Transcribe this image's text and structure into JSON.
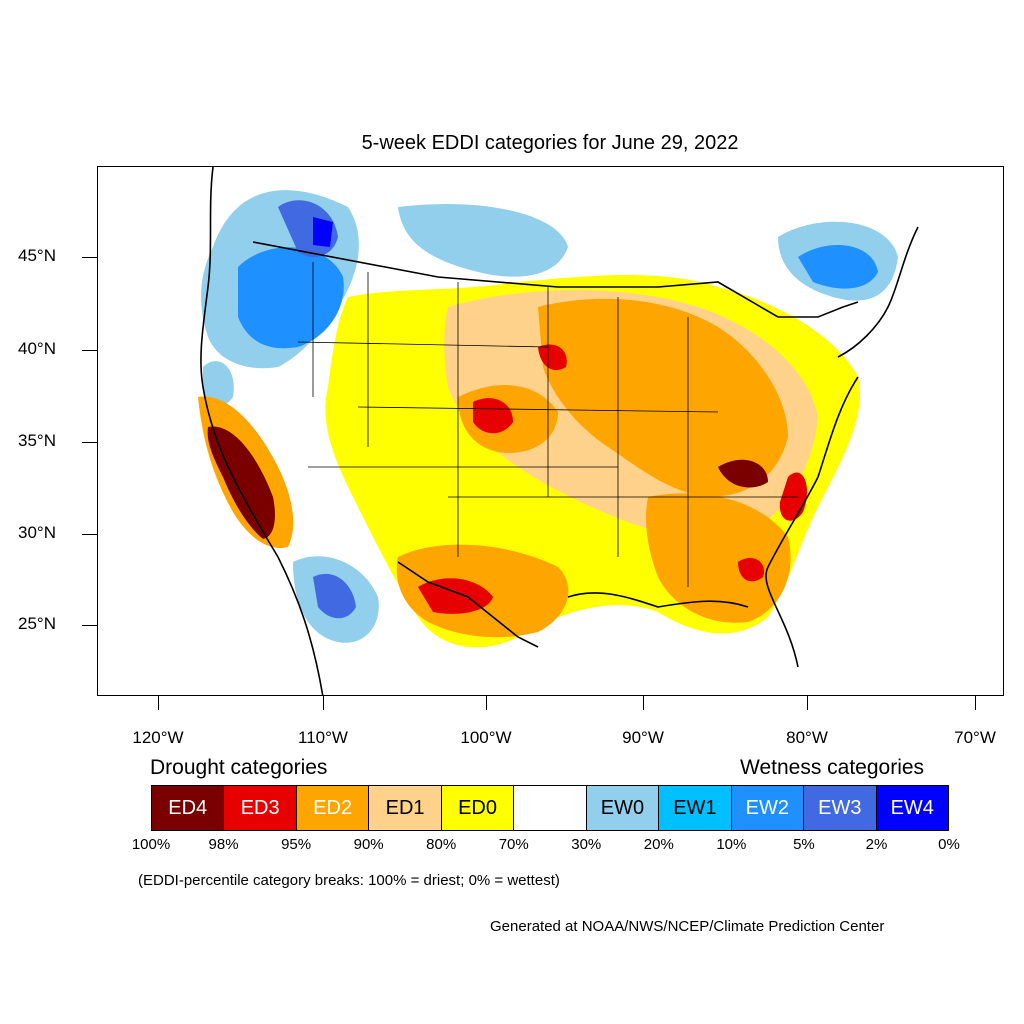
{
  "title": "5-week EDDI categories for June 29, 2022",
  "latitude_labels": [
    "45°N",
    "40°N",
    "35°N",
    "30°N",
    "25°N"
  ],
  "longitude_labels": [
    "120°W",
    "110°W",
    "100°W",
    "90°W",
    "80°W",
    "70°W"
  ],
  "legend": {
    "drought_heading": "Drought categories",
    "wetness_heading": "Wetness categories",
    "categories": [
      {
        "label": "ED4",
        "color": "#7a0000",
        "text_color": "#ffffff"
      },
      {
        "label": "ED3",
        "color": "#e60000",
        "text_color": "#ffffff"
      },
      {
        "label": "ED2",
        "color": "#ffa500",
        "text_color": "#ffffff"
      },
      {
        "label": "ED1",
        "color": "#ffd28c",
        "text_color": "#000000"
      },
      {
        "label": "ED0",
        "color": "#ffff00",
        "text_color": "#000000"
      },
      {
        "label": "",
        "color": "#ffffff",
        "text_color": "#000000"
      },
      {
        "label": "EW0",
        "color": "#91cfed",
        "text_color": "#000000"
      },
      {
        "label": "EW1",
        "color": "#00bfff",
        "text_color": "#000000"
      },
      {
        "label": "EW2",
        "color": "#1e90ff",
        "text_color": "#ffffff"
      },
      {
        "label": "EW3",
        "color": "#4169e1",
        "text_color": "#ffffff"
      },
      {
        "label": "EW4",
        "color": "#0000ff",
        "text_color": "#ffffff"
      }
    ],
    "breaks": [
      "100%",
      "98%",
      "95%",
      "90%",
      "80%",
      "70%",
      "30%",
      "20%",
      "10%",
      "5%",
      "2%",
      "0%"
    ]
  },
  "note": "(EDDI-percentile category breaks: 100% = driest; 0% = wettest)",
  "credit": "Generated at NOAA/NWS/NCEP/Climate Prediction Center"
}
